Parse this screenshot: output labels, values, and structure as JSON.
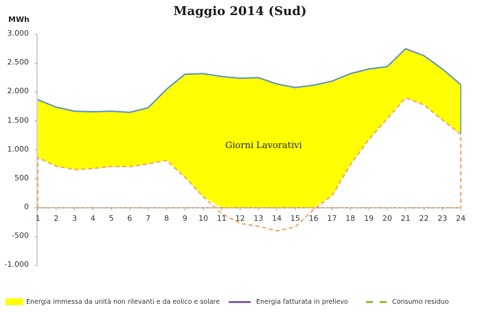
{
  "chart_data": {
    "type": "area",
    "title": "Maggio 2014  (Sud)",
    "ylabel": "MWh",
    "xlabel": "",
    "annotation": "Giorni Lavorativi",
    "categories": [
      1,
      2,
      3,
      4,
      5,
      6,
      7,
      8,
      9,
      10,
      11,
      12,
      13,
      14,
      15,
      16,
      17,
      18,
      19,
      20,
      21,
      22,
      23,
      24
    ],
    "ylim": [
      -1000,
      3000
    ],
    "yticks": [
      "3.000",
      "2.500",
      "2.000",
      "1.500",
      "1.000",
      "500",
      "0",
      "-500",
      "-1.000"
    ],
    "ytick_values": [
      3000,
      2500,
      2000,
      1500,
      1000,
      500,
      0,
      -500,
      -1000
    ],
    "grid": false,
    "legend_position": "bottom",
    "series": [
      {
        "name": "Energia immessa da unità non rilevanti e da eolico e solare",
        "kind": "area",
        "color": "#ffff00",
        "upper": [
          1870,
          1740,
          1670,
          1660,
          1670,
          1650,
          1730,
          2050,
          2310,
          2320,
          2270,
          2240,
          2250,
          2140,
          2080,
          2120,
          2190,
          2320,
          2400,
          2440,
          2750,
          2630,
          2400,
          2130
        ],
        "lower": [
          870,
          720,
          660,
          680,
          715,
          710,
          760,
          820,
          530,
          190,
          0,
          0,
          0,
          0,
          0,
          0,
          210,
          750,
          1180,
          1540,
          1900,
          1780,
          1520,
          1270
        ]
      },
      {
        "name": "Energia fatturata  in prelievo",
        "kind": "line",
        "color": "#7f5fa8",
        "values": [
          0,
          0,
          0,
          0,
          0,
          0,
          0,
          0,
          0,
          0,
          0,
          0,
          0,
          0,
          0,
          0,
          0,
          0,
          0,
          0,
          0,
          0,
          0,
          0
        ]
      },
      {
        "name": "Consumo residuo",
        "kind": "dashed-line",
        "color": "#f4a460",
        "legend_color": "#8cbf3f",
        "values": [
          870,
          720,
          660,
          680,
          715,
          710,
          760,
          820,
          530,
          190,
          -100,
          -270,
          -320,
          -400,
          -330,
          -30,
          210,
          750,
          1180,
          1540,
          1900,
          1780,
          1520,
          1270
        ]
      }
    ]
  },
  "legend": {
    "item1": "Energia immessa da unità non rilevanti e da eolico e solare",
    "item2": "Energia fatturata  in prelievo",
    "item3": "Consumo residuo"
  }
}
